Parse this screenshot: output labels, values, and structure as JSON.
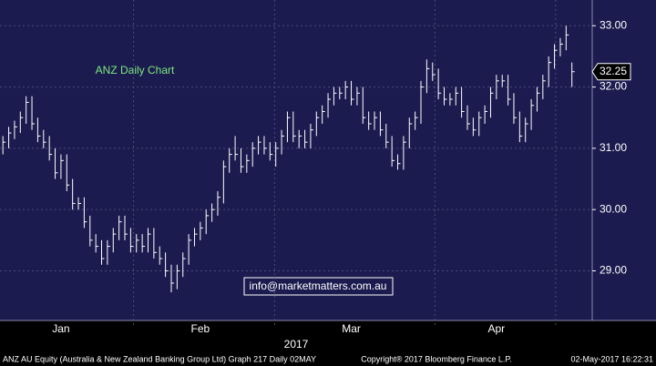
{
  "chart_data": {
    "type": "hlc",
    "title": "ANZ Daily Chart",
    "x_label": "2017",
    "annotation": "info@marketmatters.com.au",
    "color": "#ffffff",
    "title_color": "#7ee87e",
    "background": "#1b1b4f",
    "high": [
      31.2,
      31.35,
      31.45,
      31.6,
      31.85,
      31.85,
      31.5,
      31.3,
      31.2,
      31.0,
      30.9,
      30.9,
      30.5,
      30.2,
      30.2,
      29.9,
      29.6,
      29.5,
      29.5,
      29.7,
      29.9,
      29.9,
      29.7,
      29.6,
      29.6,
      29.7,
      29.7,
      29.4,
      29.3,
      29.1,
      29.1,
      29.3,
      29.6,
      29.7,
      29.8,
      30.0,
      30.1,
      30.3,
      30.8,
      31.0,
      31.2,
      31.0,
      30.9,
      31.1,
      31.2,
      31.2,
      31.1,
      31.1,
      31.3,
      31.6,
      31.6,
      31.3,
      31.3,
      31.4,
      31.6,
      31.7,
      31.9,
      32.0,
      32.0,
      32.1,
      32.1,
      32.0,
      32.0,
      31.6,
      31.6,
      31.6,
      31.4,
      31.2,
      30.9,
      31.2,
      31.5,
      31.6,
      32.1,
      32.45,
      32.4,
      32.3,
      32.0,
      31.9,
      32.0,
      32.0,
      31.7,
      31.5,
      31.6,
      31.7,
      32.0,
      32.2,
      32.2,
      32.2,
      31.9,
      31.6,
      31.5,
      31.8,
      32.0,
      32.2,
      32.5,
      32.7,
      32.8,
      33.0,
      32.4
    ],
    "low": [
      30.9,
      31.0,
      31.15,
      31.25,
      31.4,
      31.3,
      31.1,
      31.0,
      30.8,
      30.5,
      30.5,
      30.3,
      30.0,
      30.0,
      29.7,
      29.4,
      29.3,
      29.1,
      29.1,
      29.3,
      29.5,
      29.5,
      29.3,
      29.3,
      29.3,
      29.3,
      29.2,
      29.1,
      28.9,
      28.65,
      28.7,
      28.9,
      29.1,
      29.4,
      29.5,
      29.6,
      29.8,
      29.9,
      30.1,
      30.6,
      30.8,
      30.6,
      30.6,
      30.7,
      30.9,
      30.9,
      30.8,
      30.7,
      30.9,
      31.1,
      31.1,
      31.0,
      31.0,
      31.0,
      31.2,
      31.4,
      31.5,
      31.7,
      31.8,
      31.8,
      31.7,
      31.7,
      31.4,
      31.3,
      31.3,
      31.2,
      31.0,
      30.7,
      30.65,
      30.65,
      31.0,
      31.3,
      31.4,
      31.9,
      32.1,
      31.8,
      31.7,
      31.7,
      31.7,
      31.5,
      31.3,
      31.2,
      31.2,
      31.4,
      31.5,
      31.8,
      32.0,
      31.7,
      31.4,
      31.1,
      31.1,
      31.3,
      31.6,
      31.8,
      32.0,
      32.3,
      32.5,
      32.6,
      32.0
    ],
    "close": [
      31.1,
      31.25,
      31.35,
      31.5,
      31.75,
      31.4,
      31.2,
      31.1,
      30.9,
      30.6,
      30.8,
      30.4,
      30.1,
      30.1,
      29.8,
      29.5,
      29.4,
      29.2,
      29.4,
      29.6,
      29.8,
      29.6,
      29.4,
      29.5,
      29.4,
      29.6,
      29.3,
      29.2,
      29.0,
      28.8,
      29.0,
      29.2,
      29.5,
      29.6,
      29.7,
      29.9,
      30.0,
      30.2,
      30.7,
      30.9,
      30.9,
      30.7,
      30.8,
      31.0,
      31.1,
      31.0,
      30.9,
      31.0,
      31.2,
      31.5,
      31.2,
      31.2,
      31.1,
      31.3,
      31.5,
      31.6,
      31.8,
      31.9,
      31.9,
      32.0,
      31.8,
      31.9,
      31.5,
      31.4,
      31.5,
      31.3,
      31.1,
      30.8,
      30.75,
      31.1,
      31.4,
      31.5,
      32.0,
      32.3,
      32.2,
      31.9,
      31.8,
      31.8,
      31.9,
      31.6,
      31.4,
      31.3,
      31.5,
      31.6,
      31.9,
      32.1,
      32.1,
      31.8,
      31.5,
      31.2,
      31.4,
      31.7,
      31.9,
      32.1,
      32.4,
      32.6,
      32.7,
      32.85,
      32.25
    ],
    "xlim": [
      -0.5,
      101.5
    ],
    "xticks": [
      {
        "value": 10,
        "label": "Jan"
      },
      {
        "value": 34,
        "label": "Feb"
      },
      {
        "value": 60,
        "label": "Mar"
      },
      {
        "value": 85,
        "label": "Apr"
      }
    ],
    "xgrid": [
      22.5,
      46.8,
      74.4,
      95.2
    ],
    "ylim": [
      28.19,
      33.42
    ],
    "yticks": [
      {
        "value": 29,
        "label": "29.00"
      },
      {
        "value": 30,
        "label": "30.00"
      },
      {
        "value": 31,
        "label": "31.00"
      },
      {
        "value": 32,
        "label": "32.00"
      },
      {
        "value": 33,
        "label": "33.00"
      }
    ],
    "last_price": 32.25,
    "grid": true
  },
  "footer": {
    "left": "ANZ AU Equity (Australia & New Zealand Banking Group Ltd) Graph 217  Daily 02MAY",
    "center": "Copyright® 2017 Bloomberg Finance L.P.",
    "right": "02-May-2017 16:22:31"
  }
}
